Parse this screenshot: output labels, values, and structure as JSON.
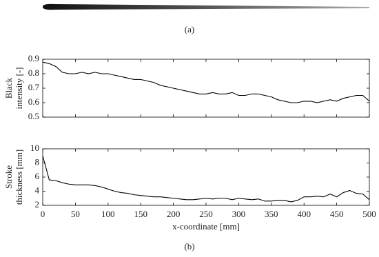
{
  "panel_labels": [
    "(a)",
    "(b)"
  ],
  "chart_data": [
    {
      "type": "line",
      "ylabel": [
        "Black",
        "intensity [-]"
      ],
      "x": [
        0,
        10,
        20,
        30,
        40,
        50,
        60,
        70,
        80,
        90,
        100,
        110,
        120,
        130,
        140,
        150,
        160,
        170,
        180,
        190,
        200,
        210,
        220,
        230,
        240,
        250,
        260,
        270,
        280,
        290,
        300,
        310,
        320,
        330,
        340,
        350,
        360,
        370,
        380,
        390,
        400,
        410,
        420,
        430,
        440,
        450,
        460,
        470,
        480,
        490,
        500
      ],
      "values": [
        0.88,
        0.87,
        0.85,
        0.81,
        0.8,
        0.8,
        0.81,
        0.8,
        0.81,
        0.8,
        0.8,
        0.79,
        0.78,
        0.77,
        0.76,
        0.76,
        0.75,
        0.74,
        0.72,
        0.71,
        0.7,
        0.69,
        0.68,
        0.67,
        0.66,
        0.66,
        0.67,
        0.66,
        0.66,
        0.67,
        0.65,
        0.65,
        0.66,
        0.66,
        0.65,
        0.64,
        0.62,
        0.61,
        0.6,
        0.6,
        0.61,
        0.61,
        0.6,
        0.61,
        0.62,
        0.61,
        0.63,
        0.64,
        0.65,
        0.65,
        0.61
      ],
      "color": "#000000",
      "xlim": [
        0,
        500
      ],
      "xticks": [
        0,
        50,
        100,
        150,
        200,
        250,
        300,
        350,
        400,
        450,
        500
      ],
      "ylim": [
        0.5,
        0.9
      ],
      "yticks": [
        0.5,
        0.6,
        0.7,
        0.8,
        0.9
      ]
    },
    {
      "type": "line",
      "ylabel": [
        "Stroke",
        "thickness [mm]"
      ],
      "xlabel": "x-coordinate [mm]",
      "x": [
        0,
        10,
        20,
        30,
        40,
        50,
        60,
        70,
        80,
        90,
        100,
        110,
        120,
        130,
        140,
        150,
        160,
        170,
        180,
        190,
        200,
        210,
        220,
        230,
        240,
        250,
        260,
        270,
        280,
        290,
        300,
        310,
        320,
        330,
        340,
        350,
        360,
        370,
        380,
        390,
        400,
        410,
        420,
        430,
        440,
        450,
        460,
        470,
        480,
        490,
        500
      ],
      "values": [
        9.0,
        5.6,
        5.5,
        5.2,
        5.0,
        4.9,
        4.9,
        4.9,
        4.8,
        4.6,
        4.3,
        4.0,
        3.8,
        3.7,
        3.5,
        3.4,
        3.3,
        3.2,
        3.2,
        3.1,
        3.0,
        2.9,
        2.8,
        2.8,
        2.9,
        3.0,
        2.9,
        3.0,
        3.0,
        2.8,
        3.0,
        2.9,
        2.8,
        2.9,
        2.6,
        2.6,
        2.7,
        2.7,
        2.5,
        2.7,
        3.2,
        3.2,
        3.3,
        3.2,
        3.6,
        3.2,
        3.8,
        4.1,
        3.7,
        3.6,
        2.8
      ],
      "color": "#000000",
      "xlim": [
        0,
        500
      ],
      "xticks": [
        0,
        50,
        100,
        150,
        200,
        250,
        300,
        350,
        400,
        450,
        500
      ],
      "ylim": [
        2,
        10
      ],
      "yticks": [
        2,
        4,
        6,
        8,
        10
      ]
    }
  ]
}
